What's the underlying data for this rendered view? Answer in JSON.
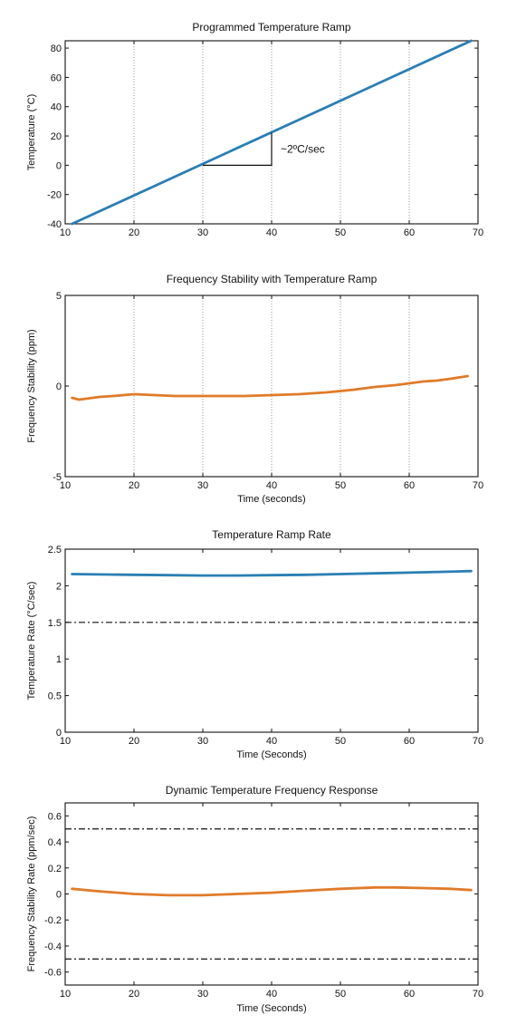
{
  "chart_data": [
    {
      "type": "line",
      "title": "Programmed Temperature Ramp",
      "xlabel": "",
      "ylabel": "Temperature (°C)",
      "xlim": [
        10,
        70
      ],
      "ylim": [
        -40,
        85
      ],
      "xticks": [
        10,
        20,
        30,
        40,
        50,
        60,
        70
      ],
      "yticks": [
        -40,
        -20,
        0,
        20,
        40,
        60,
        80
      ],
      "grid": "vertical",
      "series": [
        {
          "color": "#2a7fb4",
          "x": [
            11,
            69
          ],
          "y": [
            -40,
            85
          ]
        }
      ],
      "annotation": {
        "text": "~2ºC/sec",
        "triangle": {
          "x0": 30,
          "x1": 40,
          "y0": 0,
          "y1": 22
        }
      }
    },
    {
      "type": "line",
      "title": "Frequency Stability with Temperature Ramp",
      "xlabel": "Time (seconds)",
      "ylabel": "Frequency Stability (ppm)",
      "xlim": [
        10,
        70
      ],
      "ylim": [
        -5,
        5
      ],
      "xticks": [
        10,
        20,
        30,
        40,
        50,
        60,
        70
      ],
      "yticks": [
        -5,
        0,
        5
      ],
      "grid": "vertical",
      "series": [
        {
          "color": "#e07b2a",
          "x": [
            11,
            12,
            13,
            15,
            17,
            20,
            23,
            26,
            30,
            33,
            36,
            40,
            44,
            48,
            52,
            55,
            58,
            60,
            62,
            64,
            66,
            68.5
          ],
          "y": [
            -0.65,
            -0.75,
            -0.7,
            -0.6,
            -0.55,
            -0.45,
            -0.5,
            -0.55,
            -0.55,
            -0.55,
            -0.55,
            -0.5,
            -0.45,
            -0.35,
            -0.2,
            -0.05,
            0.05,
            0.15,
            0.25,
            0.3,
            0.4,
            0.55
          ]
        }
      ]
    },
    {
      "type": "line",
      "title": "Temperature Ramp Rate",
      "xlabel": "Time (Seconds)",
      "ylabel": "Temperature Rate (°C/sec)",
      "xlim": [
        10,
        70
      ],
      "ylim": [
        0,
        2.5
      ],
      "xticks": [
        10,
        20,
        30,
        40,
        50,
        60,
        70
      ],
      "yticks": [
        0,
        0.5,
        1,
        1.5,
        2,
        2.5
      ],
      "ytick_labels": [
        "0",
        "0.5",
        "1",
        "1.5",
        "2",
        "2.5"
      ],
      "grid": "none",
      "series": [
        {
          "color": "#2a7fb4",
          "x": [
            11,
            15,
            20,
            25,
            30,
            35,
            40,
            45,
            50,
            55,
            60,
            65,
            69
          ],
          "y": [
            2.16,
            2.155,
            2.15,
            2.145,
            2.14,
            2.14,
            2.145,
            2.15,
            2.16,
            2.17,
            2.18,
            2.19,
            2.2
          ]
        }
      ],
      "reference_lines": [
        1.5
      ]
    },
    {
      "type": "line",
      "title": "Dynamic Temperature Frequency Response",
      "xlabel": "Time (Seconds)",
      "ylabel": "Frequency Stability Rate (ppm/sec)",
      "xlim": [
        10,
        70
      ],
      "ylim": [
        -0.7,
        0.7
      ],
      "xticks": [
        10,
        20,
        30,
        40,
        50,
        60,
        70
      ],
      "yticks": [
        -0.6,
        -0.4,
        -0.2,
        0,
        0.2,
        0.4,
        0.6
      ],
      "ytick_labels": [
        "-0.6",
        "-0.4",
        "-0.2",
        "0",
        "0.2",
        "0.4",
        "0.6"
      ],
      "grid": "none",
      "series": [
        {
          "color": "#e07b2a",
          "x": [
            11,
            15,
            20,
            25,
            30,
            35,
            40,
            45,
            50,
            55,
            58,
            62,
            66,
            69
          ],
          "y": [
            0.04,
            0.02,
            0.0,
            -0.01,
            -0.01,
            0.0,
            0.01,
            0.025,
            0.04,
            0.05,
            0.05,
            0.045,
            0.04,
            0.03
          ]
        }
      ],
      "reference_lines": [
        0.5,
        -0.5
      ]
    }
  ]
}
